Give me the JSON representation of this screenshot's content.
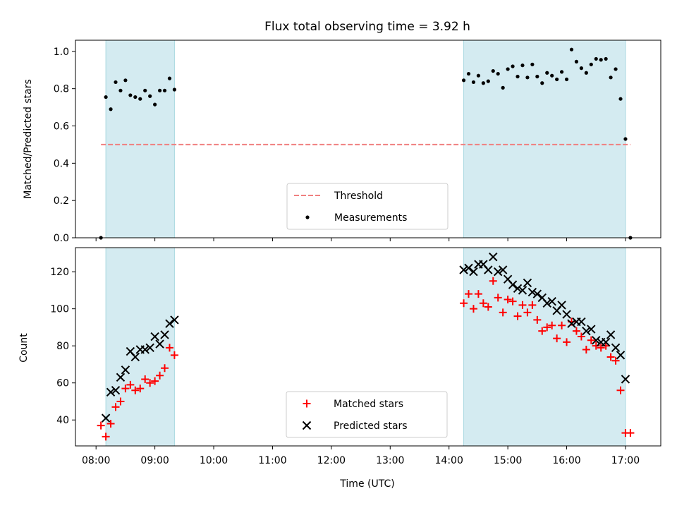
{
  "chart_data": [
    {
      "type": "scatter",
      "title": "Flux total observing time = 3.92 h",
      "xlabel": "",
      "ylabel": "Matched/Predicted stars",
      "xlim": [
        "07:39",
        "17:36"
      ],
      "ylim": [
        0,
        1.06
      ],
      "yticks": [
        "0.0",
        "0.2",
        "0.4",
        "0.6",
        "0.8",
        "1.0"
      ],
      "shaded_intervals": [
        [
          "08:10",
          "09:20"
        ],
        [
          "14:15",
          "17:00"
        ]
      ],
      "threshold": {
        "name": "Threshold",
        "value": 0.5,
        "x_range": [
          "08:05",
          "17:05"
        ],
        "color": "#f08080"
      },
      "series": [
        {
          "name": "Measurements",
          "marker": "dot",
          "color": "#000000",
          "points": [
            [
              "08:05",
              0.0
            ],
            [
              "08:10",
              0.755
            ],
            [
              "08:15",
              0.69
            ],
            [
              "08:20",
              0.835
            ],
            [
              "08:25",
              0.79
            ],
            [
              "08:30",
              0.845
            ],
            [
              "08:35",
              0.765
            ],
            [
              "08:40",
              0.755
            ],
            [
              "08:45",
              0.745
            ],
            [
              "08:50",
              0.79
            ],
            [
              "08:55",
              0.76
            ],
            [
              "09:00",
              0.715
            ],
            [
              "09:05",
              0.79
            ],
            [
              "09:10",
              0.79
            ],
            [
              "09:15",
              0.855
            ],
            [
              "09:20",
              0.795
            ],
            [
              "14:15",
              0.845
            ],
            [
              "14:20",
              0.88
            ],
            [
              "14:25",
              0.835
            ],
            [
              "14:30",
              0.87
            ],
            [
              "14:35",
              0.83
            ],
            [
              "14:40",
              0.84
            ],
            [
              "14:45",
              0.895
            ],
            [
              "14:50",
              0.88
            ],
            [
              "14:55",
              0.805
            ],
            [
              "15:00",
              0.905
            ],
            [
              "15:05",
              0.92
            ],
            [
              "15:10",
              0.865
            ],
            [
              "15:15",
              0.925
            ],
            [
              "15:20",
              0.86
            ],
            [
              "15:25",
              0.93
            ],
            [
              "15:30",
              0.865
            ],
            [
              "15:35",
              0.83
            ],
            [
              "15:40",
              0.885
            ],
            [
              "15:45",
              0.87
            ],
            [
              "15:50",
              0.85
            ],
            [
              "15:55",
              0.89
            ],
            [
              "16:00",
              0.85
            ],
            [
              "16:05",
              1.01
            ],
            [
              "16:10",
              0.945
            ],
            [
              "16:15",
              0.91
            ],
            [
              "16:20",
              0.885
            ],
            [
              "16:25",
              0.93
            ],
            [
              "16:30",
              0.96
            ],
            [
              "16:35",
              0.955
            ],
            [
              "16:40",
              0.96
            ],
            [
              "16:45",
              0.86
            ],
            [
              "16:50",
              0.905
            ],
            [
              "16:55",
              0.745
            ],
            [
              "17:00",
              0.53
            ],
            [
              "17:05",
              0.0
            ]
          ]
        }
      ],
      "legend": {
        "placement": "lower-center",
        "entries": [
          "Threshold",
          "Measurements"
        ]
      }
    },
    {
      "type": "scatter",
      "title": "",
      "xlabel": "Time (UTC)",
      "ylabel": "Count",
      "xlim": [
        "07:39",
        "17:36"
      ],
      "ylim": [
        26,
        133
      ],
      "xticks": [
        "08:00",
        "09:00",
        "10:00",
        "11:00",
        "12:00",
        "13:00",
        "14:00",
        "15:00",
        "16:00",
        "17:00"
      ],
      "yticks": [
        "40",
        "60",
        "80",
        "100",
        "120"
      ],
      "shaded_intervals": [
        [
          "08:10",
          "09:20"
        ],
        [
          "14:15",
          "17:00"
        ]
      ],
      "series": [
        {
          "name": "Matched stars",
          "marker": "plus",
          "color": "#ff0000",
          "points": [
            [
              "08:05",
              37
            ],
            [
              "08:10",
              31
            ],
            [
              "08:15",
              38
            ],
            [
              "08:20",
              47
            ],
            [
              "08:25",
              50
            ],
            [
              "08:30",
              57
            ],
            [
              "08:35",
              59
            ],
            [
              "08:40",
              56
            ],
            [
              "08:45",
              57
            ],
            [
              "08:50",
              62
            ],
            [
              "08:55",
              60
            ],
            [
              "09:00",
              61
            ],
            [
              "09:05",
              64
            ],
            [
              "09:10",
              68
            ],
            [
              "09:15",
              79
            ],
            [
              "09:20",
              75
            ],
            [
              "14:15",
              103
            ],
            [
              "14:20",
              108
            ],
            [
              "14:25",
              100
            ],
            [
              "14:30",
              108
            ],
            [
              "14:35",
              103
            ],
            [
              "14:40",
              101
            ],
            [
              "14:45",
              115
            ],
            [
              "14:50",
              106
            ],
            [
              "14:55",
              98
            ],
            [
              "15:00",
              105
            ],
            [
              "15:05",
              104
            ],
            [
              "15:10",
              96
            ],
            [
              "15:15",
              102
            ],
            [
              "15:20",
              98
            ],
            [
              "15:25",
              102
            ],
            [
              "15:30",
              94
            ],
            [
              "15:35",
              88
            ],
            [
              "15:40",
              90
            ],
            [
              "15:45",
              91
            ],
            [
              "15:50",
              84
            ],
            [
              "15:55",
              91
            ],
            [
              "16:00",
              82
            ],
            [
              "16:05",
              93
            ],
            [
              "16:10",
              88
            ],
            [
              "16:15",
              85
            ],
            [
              "16:20",
              78
            ],
            [
              "16:25",
              83
            ],
            [
              "16:30",
              80
            ],
            [
              "16:35",
              79
            ],
            [
              "16:40",
              80
            ],
            [
              "16:45",
              74
            ],
            [
              "16:50",
              72
            ],
            [
              "16:55",
              56
            ],
            [
              "17:00",
              33
            ],
            [
              "17:05",
              33
            ]
          ]
        },
        {
          "name": "Predicted stars",
          "marker": "x",
          "color": "#000000",
          "points": [
            [
              "08:10",
              41
            ],
            [
              "08:15",
              55
            ],
            [
              "08:20",
              56
            ],
            [
              "08:25",
              63
            ],
            [
              "08:30",
              67
            ],
            [
              "08:35",
              77
            ],
            [
              "08:40",
              74
            ],
            [
              "08:45",
              78
            ],
            [
              "08:50",
              78
            ],
            [
              "08:55",
              79
            ],
            [
              "09:00",
              85
            ],
            [
              "09:05",
              81
            ],
            [
              "09:10",
              86
            ],
            [
              "09:15",
              92
            ],
            [
              "09:20",
              94
            ],
            [
              "14:15",
              121
            ],
            [
              "14:20",
              122
            ],
            [
              "14:25",
              120
            ],
            [
              "14:30",
              124
            ],
            [
              "14:35",
              124
            ],
            [
              "14:40",
              121
            ],
            [
              "14:45",
              128
            ],
            [
              "14:50",
              120
            ],
            [
              "14:55",
              121
            ],
            [
              "15:00",
              116
            ],
            [
              "15:05",
              113
            ],
            [
              "15:10",
              111
            ],
            [
              "15:15",
              110
            ],
            [
              "15:20",
              114
            ],
            [
              "15:25",
              109
            ],
            [
              "15:30",
              108
            ],
            [
              "15:35",
              106
            ],
            [
              "15:40",
              103
            ],
            [
              "15:45",
              104
            ],
            [
              "15:50",
              99
            ],
            [
              "15:55",
              102
            ],
            [
              "16:00",
              97
            ],
            [
              "16:05",
              92
            ],
            [
              "16:10",
              93
            ],
            [
              "16:15",
              93
            ],
            [
              "16:20",
              88
            ],
            [
              "16:25",
              89
            ],
            [
              "16:30",
              83
            ],
            [
              "16:35",
              82
            ],
            [
              "16:40",
              82
            ],
            [
              "16:45",
              86
            ],
            [
              "16:50",
              79
            ],
            [
              "16:55",
              75
            ],
            [
              "17:00",
              62
            ]
          ]
        }
      ],
      "legend": {
        "placement": "lower-center",
        "entries": [
          "Matched stars",
          "Predicted stars"
        ]
      }
    }
  ],
  "colors": {
    "shade": "#d4ebf1",
    "shade_edge": "#a9d8e0",
    "threshold": "#f08080",
    "matched": "#ff0000",
    "predicted": "#000000"
  }
}
